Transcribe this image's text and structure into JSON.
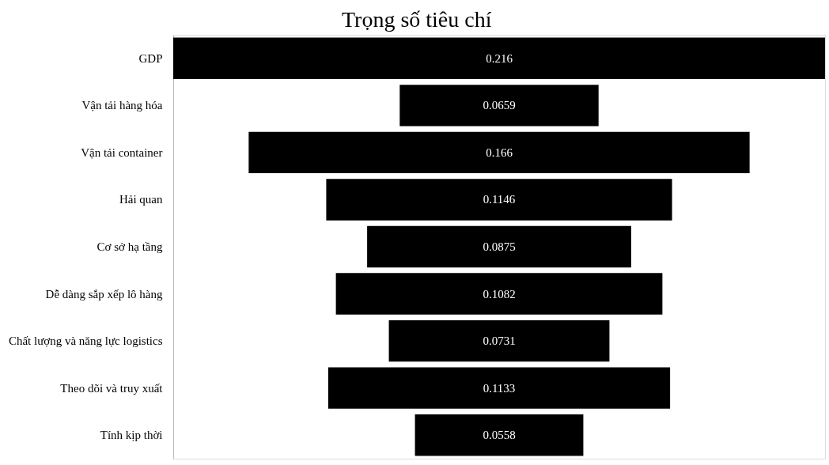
{
  "chart_data": {
    "type": "other",
    "title": "Trọng số tiêu chí",
    "categories": [
      "GDP",
      "Vận tải hàng hóa",
      "Vận tải container",
      "Hải quan",
      "Cơ sở hạ tầng",
      "Dễ dàng sắp xếp lô hàng",
      "Chất lượng và năng lực logistics",
      "Theo dõi và truy xuất",
      "Tính kịp thời"
    ],
    "values": [
      0.216,
      0.0659,
      0.166,
      0.1146,
      0.0875,
      0.1082,
      0.0731,
      0.1133,
      0.0558
    ],
    "color": "#000000",
    "data_labels": true
  }
}
